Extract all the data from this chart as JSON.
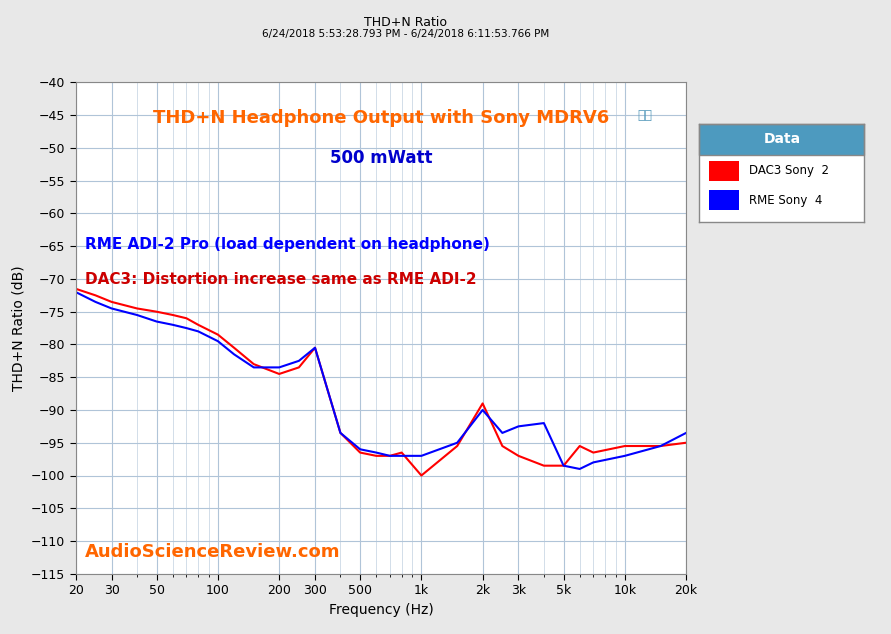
{
  "title_top": "THD+N Ratio",
  "subtitle_top": "6/24/2018 5:53:28.793 PM - 6/24/2018 6:11:53.766 PM",
  "title_main_line1": "THD+N Headphone Output with Sony MDRV6",
  "title_main_line2": "500 mWatt",
  "annotation_blue": "RME ADI-2 Pro (load dependent on headphone)",
  "annotation_red": "DAC3: Distortion increase same as RME ADI-2",
  "watermark": "AudioScienceReview.com",
  "xlabel": "Frequency (Hz)",
  "ylabel": "THD+N Ratio (dB)",
  "ylim": [
    -115,
    -40
  ],
  "yticks": [
    -115,
    -110,
    -105,
    -100,
    -95,
    -90,
    -85,
    -80,
    -75,
    -70,
    -65,
    -60,
    -55,
    -50,
    -45,
    -40
  ],
  "bg_color": "#e8e8e8",
  "plot_bg_color": "#ffffff",
  "grid_color": "#b0c4d8",
  "title_color_orange": "#FF6600",
  "title_color_blue": "#0000CC",
  "annotation_blue_color": "#0000FF",
  "annotation_red_color": "#CC0000",
  "watermark_color": "#FF6600",
  "legend_header_bg": "#4d9abf",
  "legend_header_text": "#ffffff",
  "dac3_color": "#FF0000",
  "rme_color": "#0000FF",
  "dac3_label": "DAC3 Sony  2",
  "rme_label": "RME Sony  4",
  "freq_dac3": [
    20,
    25,
    30,
    40,
    50,
    60,
    70,
    80,
    100,
    120,
    150,
    200,
    250,
    300,
    400,
    500,
    600,
    700,
    800,
    1000,
    1500,
    2000,
    2500,
    3000,
    4000,
    5000,
    6000,
    7000,
    10000,
    15000,
    20000
  ],
  "thdn_dac3": [
    -71.5,
    -72.5,
    -73.5,
    -74.5,
    -75.0,
    -75.5,
    -76.0,
    -77.0,
    -78.5,
    -80.5,
    -83.0,
    -84.5,
    -83.5,
    -80.5,
    -93.5,
    -96.5,
    -97.0,
    -97.0,
    -96.5,
    -100.0,
    -95.5,
    -89.0,
    -95.5,
    -97.0,
    -98.5,
    -98.5,
    -95.5,
    -96.5,
    -95.5,
    -95.5,
    -95.0
  ],
  "freq_rme": [
    20,
    25,
    30,
    40,
    50,
    60,
    70,
    80,
    100,
    120,
    150,
    200,
    250,
    300,
    400,
    500,
    600,
    700,
    800,
    1000,
    1500,
    2000,
    2500,
    3000,
    4000,
    5000,
    6000,
    7000,
    10000,
    15000,
    20000
  ],
  "thdn_rme": [
    -72.0,
    -73.5,
    -74.5,
    -75.5,
    -76.5,
    -77.0,
    -77.5,
    -78.0,
    -79.5,
    -81.5,
    -83.5,
    -83.5,
    -82.5,
    -80.5,
    -93.5,
    -96.0,
    -96.5,
    -97.0,
    -97.0,
    -97.0,
    -95.0,
    -90.0,
    -93.5,
    -92.5,
    -92.0,
    -98.5,
    -99.0,
    -98.0,
    -97.0,
    -95.5,
    -93.5
  ],
  "xtick_positions": [
    20,
    30,
    50,
    100,
    200,
    300,
    500,
    1000,
    2000,
    3000,
    5000,
    10000,
    20000
  ],
  "xtick_labels": [
    "20",
    "30",
    "50",
    "100",
    "200",
    "300",
    "500",
    "1k",
    "2k",
    "3k",
    "5k",
    "10k",
    "20k"
  ]
}
